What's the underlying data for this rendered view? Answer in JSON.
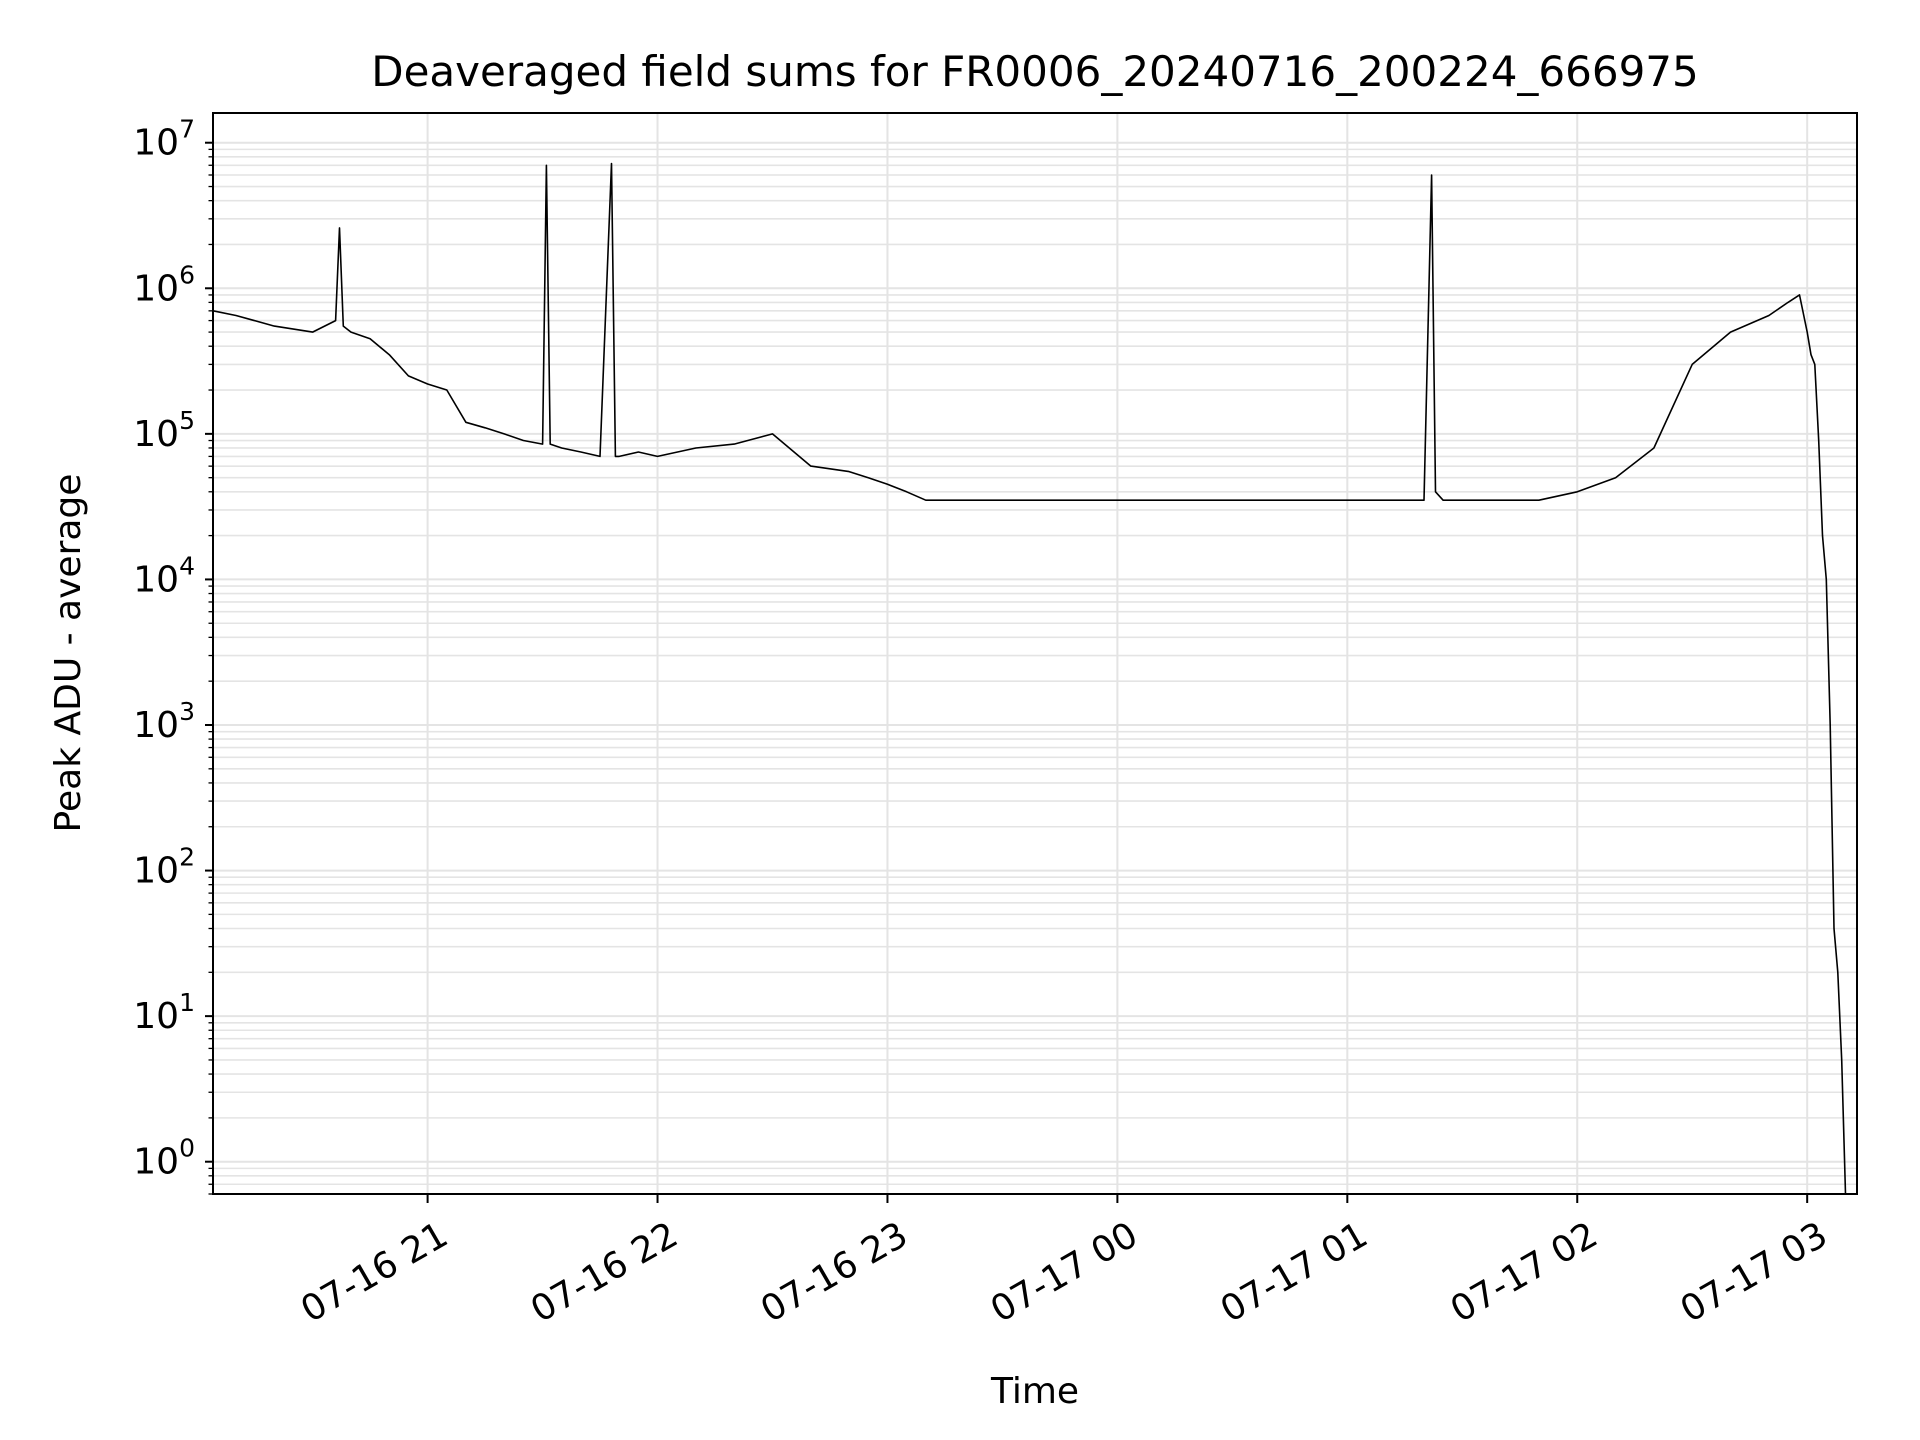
{
  "chart_data": {
    "type": "line",
    "title": "Deaveraged field sums for FR0006_20240716_200224_666975",
    "xlabel": "Time",
    "ylabel": "Peak ADU - average",
    "yscale": "log",
    "xlim": [
      "07-16 20:04",
      "07-17 03:13"
    ],
    "ylim": [
      0.6,
      16000000
    ],
    "grid": true,
    "x_ticks": [
      {
        "label": "07-16 21",
        "value": "07-16 21:00"
      },
      {
        "label": "07-16 22",
        "value": "07-16 22:00"
      },
      {
        "label": "07-16 23",
        "value": "07-16 23:00"
      },
      {
        "label": "07-17 00",
        "value": "07-17 00:00"
      },
      {
        "label": "07-17 01",
        "value": "07-17 01:00"
      },
      {
        "label": "07-17 02",
        "value": "07-17 02:00"
      },
      {
        "label": "07-17 03",
        "value": "07-17 03:00"
      }
    ],
    "y_ticks": [
      {
        "base": "10",
        "exp": "0",
        "value": 1
      },
      {
        "base": "10",
        "exp": "1",
        "value": 10
      },
      {
        "base": "10",
        "exp": "2",
        "value": 100
      },
      {
        "base": "10",
        "exp": "3",
        "value": 1000
      },
      {
        "base": "10",
        "exp": "4",
        "value": 10000
      },
      {
        "base": "10",
        "exp": "5",
        "value": 100000
      },
      {
        "base": "10",
        "exp": "6",
        "value": 1000000
      },
      {
        "base": "10",
        "exp": "7",
        "value": 10000000
      }
    ],
    "series": [
      {
        "color": "#000000",
        "x": [
          "07-16 20:04",
          "07-16 20:10",
          "07-16 20:20",
          "07-16 20:30",
          "07-16 20:36",
          "07-16 20:37",
          "07-16 20:38",
          "07-16 20:40",
          "07-16 20:45",
          "07-16 20:50",
          "07-16 20:55",
          "07-16 21:00",
          "07-16 21:05",
          "07-16 21:10",
          "07-16 21:15",
          "07-16 21:20",
          "07-16 21:25",
          "07-16 21:30",
          "07-16 21:31",
          "07-16 21:32",
          "07-16 21:35",
          "07-16 21:40",
          "07-16 21:45",
          "07-16 21:48",
          "07-16 21:49",
          "07-16 21:50",
          "07-16 21:55",
          "07-16 22:00",
          "07-16 22:10",
          "07-16 22:20",
          "07-16 22:30",
          "07-16 22:40",
          "07-16 22:50",
          "07-16 22:55",
          "07-16 23:00",
          "07-16 23:05",
          "07-16 23:10",
          "07-16 23:15",
          "07-16 23:20",
          "07-16 23:30",
          "07-16 23:40",
          "07-16 23:50",
          "07-17 00:00",
          "07-17 00:10",
          "07-17 00:20",
          "07-17 00:30",
          "07-17 00:40",
          "07-17 00:50",
          "07-17 01:00",
          "07-17 01:10",
          "07-17 01:20",
          "07-17 01:22",
          "07-17 01:23",
          "07-17 01:25",
          "07-17 01:30",
          "07-17 01:40",
          "07-17 01:50",
          "07-17 02:00",
          "07-17 02:10",
          "07-17 02:20",
          "07-17 02:30",
          "07-17 02:40",
          "07-17 02:50",
          "07-17 02:55",
          "07-17 02:58",
          "07-17 03:00",
          "07-17 03:01",
          "07-17 03:02",
          "07-17 03:03",
          "07-17 03:04",
          "07-17 03:05",
          "07-17 03:06",
          "07-17 03:07",
          "07-17 03:08",
          "07-17 03:09",
          "07-17 03:10"
        ],
        "y": [
          700000,
          650000,
          550000,
          500000,
          600000,
          2600000,
          550000,
          500000,
          450000,
          350000,
          250000,
          220000,
          200000,
          120000,
          110000,
          100000,
          90000,
          85000,
          7000000,
          85000,
          80000,
          75000,
          70000,
          7200000,
          70000,
          70000,
          75000,
          70000,
          80000,
          85000,
          100000,
          60000,
          55000,
          50000,
          45000,
          40000,
          35000,
          35000,
          35000,
          35000,
          35000,
          35000,
          35000,
          35000,
          35000,
          35000,
          35000,
          35000,
          35000,
          35000,
          35000,
          6000000,
          40000,
          35000,
          35000,
          35000,
          35000,
          40000,
          50000,
          80000,
          300000,
          500000,
          650000,
          800000,
          900000,
          500000,
          350000,
          300000,
          90000,
          20000,
          10000,
          1000,
          40,
          20,
          5,
          0.6
        ]
      }
    ]
  }
}
